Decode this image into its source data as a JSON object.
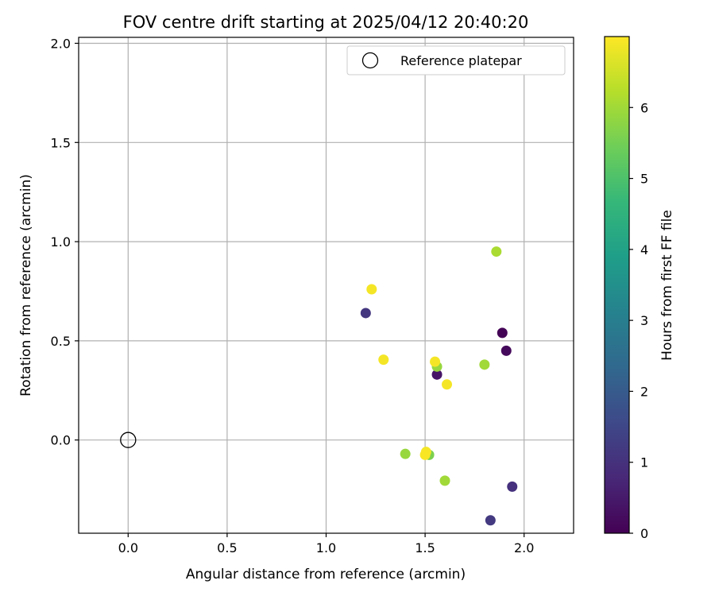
{
  "chart_data": {
    "type": "scatter",
    "title": "FOV centre drift starting at 2025/04/12 20:40:20",
    "xlabel": "Angular distance from reference (arcmin)",
    "ylabel": "Rotation from reference (arcmin)",
    "xlim": [
      -0.25,
      2.25
    ],
    "ylim": [
      -0.47,
      2.03
    ],
    "xticks": [
      0.0,
      0.5,
      1.0,
      1.5,
      2.0
    ],
    "xtick_labels": [
      "0.0",
      "0.5",
      "1.0",
      "1.5",
      "2.0"
    ],
    "yticks": [
      0.0,
      0.5,
      1.0,
      1.5,
      2.0
    ],
    "ytick_labels": [
      "0.0",
      "0.5",
      "1.0",
      "1.5",
      "2.0"
    ],
    "grid": true,
    "legend": {
      "position": "top-right",
      "entries": [
        "Reference platepar"
      ]
    },
    "reference_point": {
      "x": 0.0,
      "y": 0.0,
      "label": "Reference platepar"
    },
    "colorbar": {
      "label": "Hours from first FF file",
      "min": 0,
      "max": 7,
      "ticks": [
        0,
        1,
        2,
        3,
        4,
        5,
        6
      ],
      "tick_labels": [
        "0",
        "1",
        "2",
        "3",
        "4",
        "5",
        "6"
      ],
      "colormap": [
        "#440154",
        "#482878",
        "#3e4989",
        "#31688e",
        "#26828e",
        "#1f9e89",
        "#35b779",
        "#6ece58",
        "#b5de2b",
        "#fde725"
      ]
    },
    "points": [
      {
        "x": 1.89,
        "y": 0.54,
        "hours": 0.05
      },
      {
        "x": 1.91,
        "y": 0.45,
        "hours": 0.15
      },
      {
        "x": 1.56,
        "y": 0.33,
        "hours": 0.4
      },
      {
        "x": 1.94,
        "y": -0.235,
        "hours": 1.0
      },
      {
        "x": 1.2,
        "y": 0.64,
        "hours": 1.1
      },
      {
        "x": 1.83,
        "y": -0.405,
        "hours": 1.2
      },
      {
        "x": 1.56,
        "y": 0.37,
        "hours": 5.9
      },
      {
        "x": 1.52,
        "y": -0.075,
        "hours": 5.6
      },
      {
        "x": 1.4,
        "y": -0.07,
        "hours": 5.9
      },
      {
        "x": 1.6,
        "y": -0.205,
        "hours": 6.0
      },
      {
        "x": 1.8,
        "y": 0.38,
        "hours": 6.0
      },
      {
        "x": 1.86,
        "y": 0.95,
        "hours": 6.1
      },
      {
        "x": 1.23,
        "y": 0.76,
        "hours": 6.9
      },
      {
        "x": 1.29,
        "y": 0.405,
        "hours": 6.9
      },
      {
        "x": 1.55,
        "y": 0.395,
        "hours": 6.9
      },
      {
        "x": 1.61,
        "y": 0.28,
        "hours": 6.9
      },
      {
        "x": 1.505,
        "y": -0.06,
        "hours": 6.9
      },
      {
        "x": 1.5,
        "y": -0.075,
        "hours": 6.95
      }
    ]
  }
}
